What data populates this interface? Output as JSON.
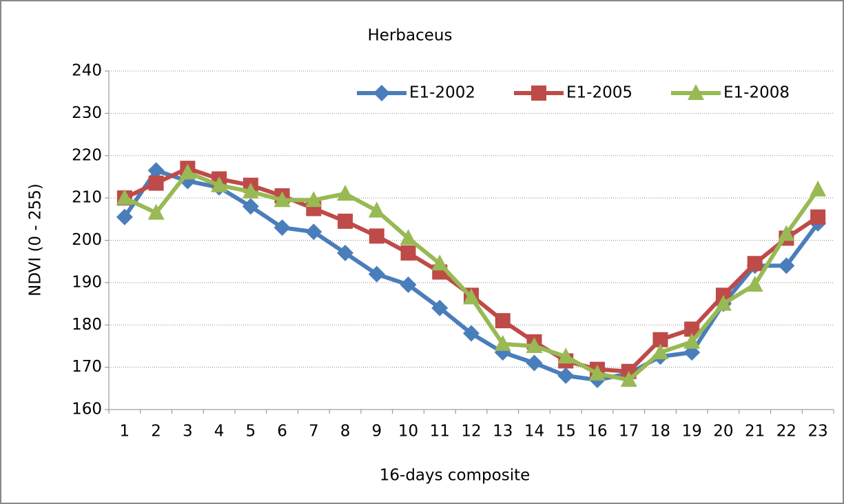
{
  "chart_data": {
    "type": "line",
    "title": "Herbaceus",
    "x_label": "16-days composite",
    "y_label": "NDVI (0 - 255)",
    "categories": [
      "1",
      "2",
      "3",
      "4",
      "5",
      "6",
      "7",
      "8",
      "9",
      "10",
      "11",
      "12",
      "13",
      "14",
      "15",
      "16",
      "17",
      "18",
      "19",
      "20",
      "21",
      "22",
      "23"
    ],
    "series": [
      {
        "name": "E1-2002",
        "color": "#4a7ebb",
        "marker": "diamond",
        "values": [
          205.5,
          216.5,
          214,
          212.5,
          208,
          203,
          202,
          197,
          192,
          189.5,
          184,
          178,
          173.5,
          171,
          168,
          167,
          168.5,
          172.5,
          173.5,
          185,
          194,
          194,
          204
        ]
      },
      {
        "name": "E1-2005",
        "color": "#be4b48",
        "marker": "square",
        "values": [
          210,
          213.5,
          217,
          214.5,
          213,
          210.5,
          207.5,
          204.5,
          201,
          197,
          192.5,
          187,
          181,
          176,
          171.5,
          169.5,
          169,
          176.5,
          179,
          187,
          194.5,
          200.5,
          205.5
        ]
      },
      {
        "name": "E1-2008",
        "color": "#98b954",
        "marker": "triangle",
        "values": [
          210,
          206.5,
          216,
          213,
          211.5,
          209.5,
          209.5,
          211,
          207,
          200.5,
          194.5,
          186.5,
          175.5,
          175,
          172.5,
          168.5,
          167,
          173.5,
          176,
          185,
          189.5,
          201.5,
          212
        ]
      }
    ],
    "ylim": [
      160,
      240
    ],
    "yticks": [
      160,
      170,
      180,
      190,
      200,
      210,
      220,
      230,
      240
    ],
    "grid": true,
    "legend": "top-right"
  }
}
